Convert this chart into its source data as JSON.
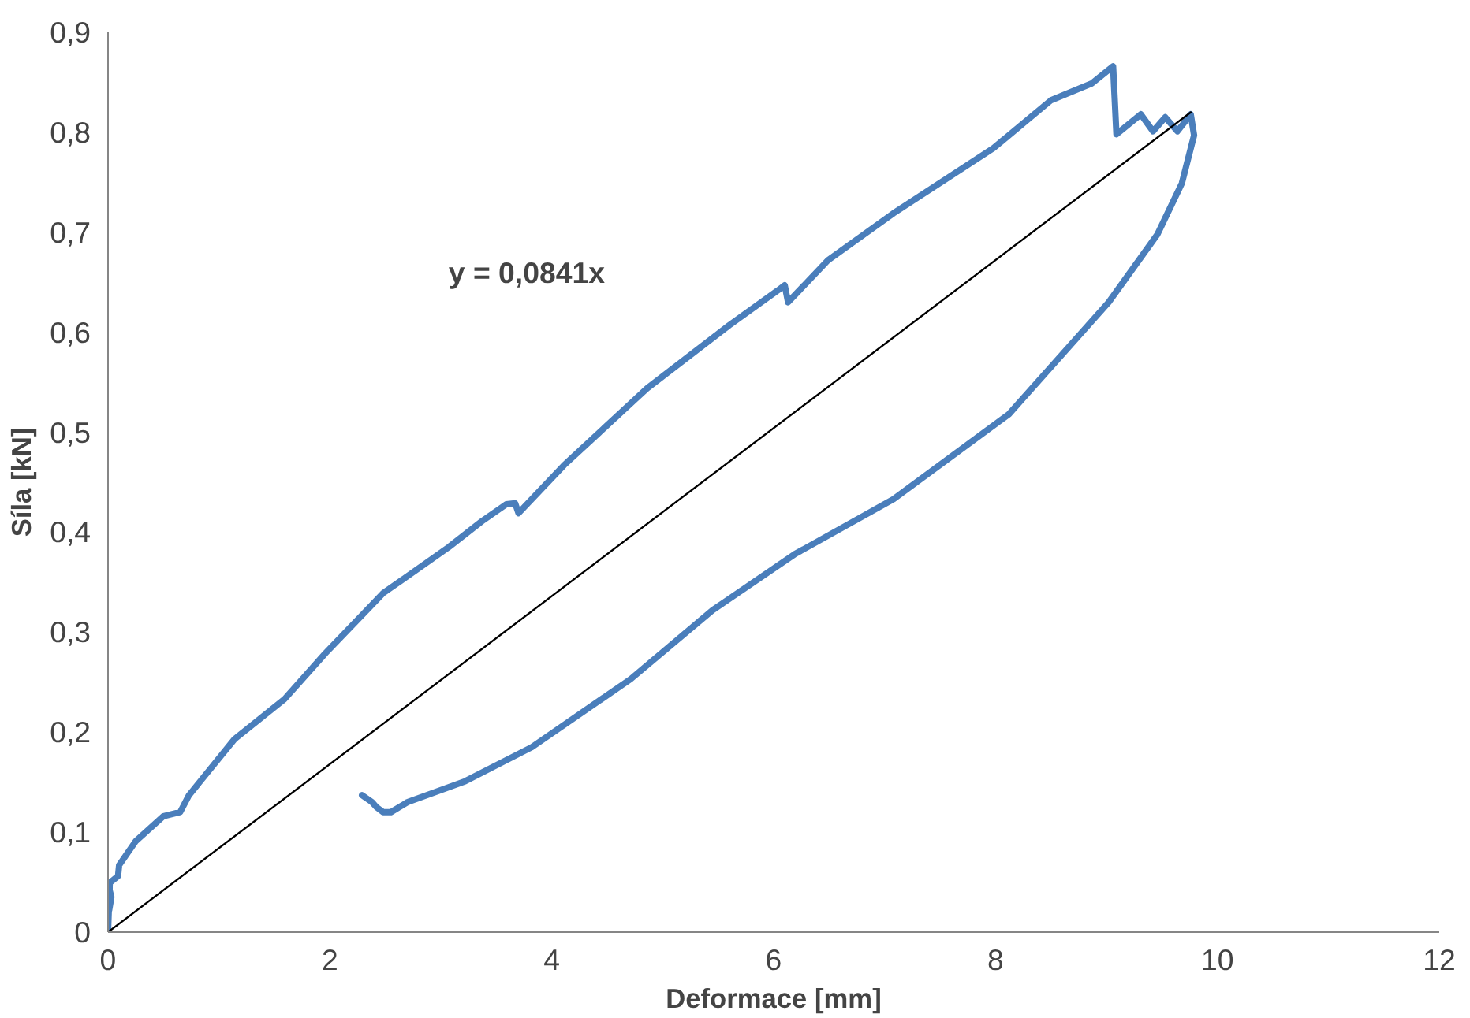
{
  "chart_data": {
    "type": "line",
    "xlabel": "Deformace [mm]",
    "ylabel": "Síla [kN]",
    "xlim": [
      0,
      12
    ],
    "xticks": [
      0,
      2,
      4,
      6,
      8,
      10,
      12
    ],
    "ylim": [
      0,
      0.9
    ],
    "yticks": [
      0,
      {
        "value": 0.1,
        "label": "0,1"
      },
      {
        "value": 0.2,
        "label": "0,2"
      },
      {
        "value": 0.3,
        "label": "0,3"
      },
      {
        "value": 0.4,
        "label": "0,4"
      },
      {
        "value": 0.5,
        "label": "0,5"
      },
      {
        "value": 0.6,
        "label": "0,6"
      },
      {
        "value": 0.7,
        "label": "0,7"
      },
      {
        "value": 0.8,
        "label": "0,8"
      },
      {
        "value": 0.9,
        "label": "0,9"
      }
    ],
    "grid": false,
    "series": [
      {
        "color": "#4a7ebb",
        "x": [
          0,
          0.015,
          0.01,
          0.03,
          0.0,
          0.09,
          0.1,
          0.25,
          0.5,
          0.65,
          0.73,
          1.14,
          1.59,
          1.96,
          2.48,
          3.07,
          3.37,
          3.59,
          3.67,
          3.7,
          4.11,
          4.86,
          5.6,
          6.04,
          6.1,
          6.13,
          6.49,
          7.08,
          7.98,
          8.5,
          8.87,
          9.06,
          9.09,
          9.31,
          9.42,
          9.53,
          9.64,
          9.76,
          9.79,
          9.76,
          9.68,
          9.46,
          9.02,
          8.12,
          7.08,
          6.19,
          5.45,
          4.71,
          3.82,
          3.22,
          2.7,
          2.55,
          2.48,
          2.42,
          2.38,
          2.29
        ],
        "values": [
          0,
          0.048,
          0.022,
          0.035,
          0.048,
          0.056,
          0.067,
          0.091,
          0.116,
          0.12,
          0.137,
          0.193,
          0.233,
          0.279,
          0.339,
          0.385,
          0.411,
          0.428,
          0.429,
          0.419,
          0.467,
          0.544,
          0.607,
          0.642,
          0.647,
          0.63,
          0.672,
          0.719,
          0.784,
          0.832,
          0.849,
          0.866,
          0.798,
          0.818,
          0.801,
          0.815,
          0.801,
          0.818,
          0.797,
          0.784,
          0.749,
          0.698,
          0.63,
          0.518,
          0.433,
          0.378,
          0.322,
          0.253,
          0.185,
          0.151,
          0.13,
          0.12,
          0.12,
          0.125,
          0.13,
          0.137
        ]
      },
      {
        "color": "#000000",
        "x": [
          0,
          9.76
        ],
        "values": [
          0,
          0.82
        ]
      }
    ],
    "annotations": [
      "y = 0,0841x"
    ]
  }
}
